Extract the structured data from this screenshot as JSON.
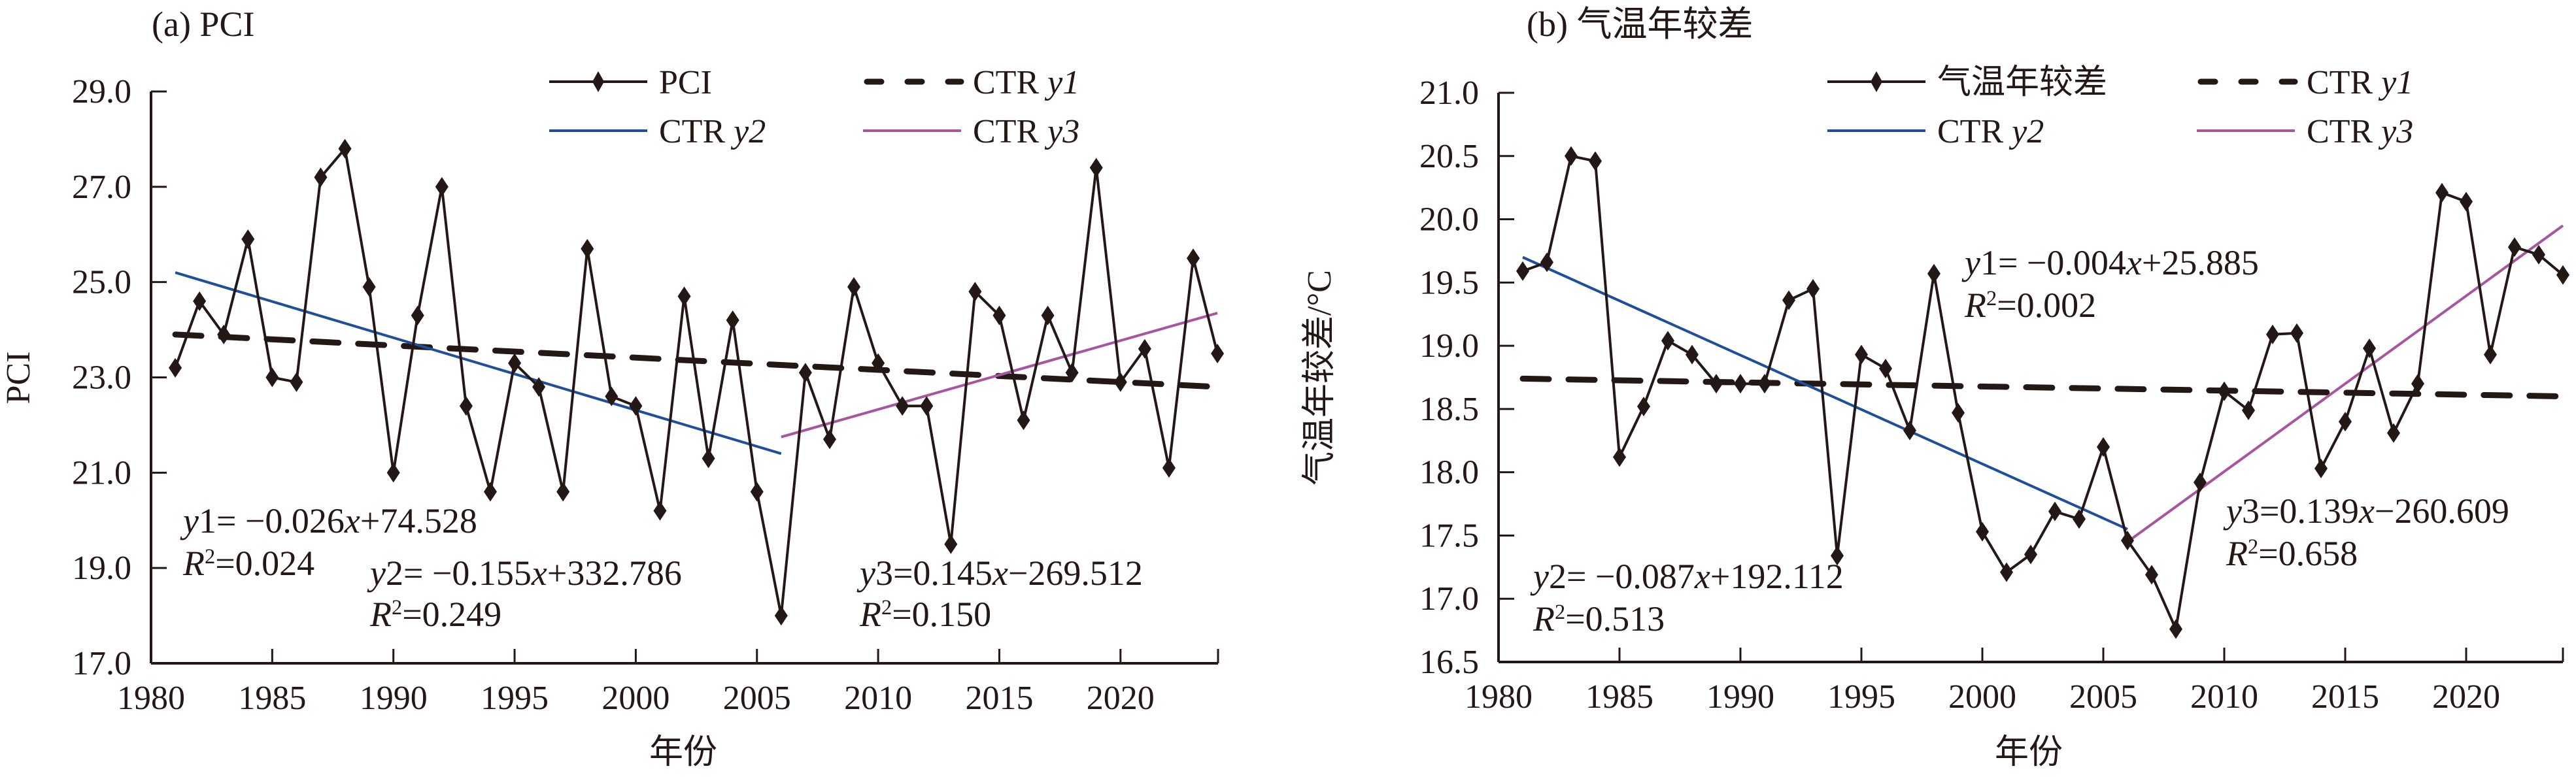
{
  "chart_data": [
    {
      "type": "line",
      "title": "(a) PCI",
      "xlabel": "年份",
      "ylabel": "PCI",
      "xlim": [
        1980,
        2024
      ],
      "ylim": [
        17.0,
        29.0
      ],
      "xticks": [
        1980,
        1985,
        1990,
        1995,
        2000,
        2005,
        2010,
        2015,
        2020
      ],
      "yticks": [
        "17.0",
        "19.0",
        "21.0",
        "23.0",
        "25.0",
        "27.0",
        "29.0"
      ],
      "ytick_values": [
        17,
        19,
        21,
        23,
        25,
        27,
        29
      ],
      "grid": false,
      "legend_position": "top-right",
      "legend": [
        {
          "label": "PCI",
          "label_italic": "",
          "style": "line-diamond",
          "color": "#231815"
        },
        {
          "label": "CTR ",
          "label_italic": "y1",
          "style": "dashed",
          "color": "#231815"
        },
        {
          "label": "CTR ",
          "label_italic": "y2",
          "style": "solid",
          "color": "#1f4e9e"
        },
        {
          "label": "CTR ",
          "label_italic": "y3",
          "style": "solid",
          "color": "#a855a0"
        }
      ],
      "x": [
        1981,
        1982,
        1983,
        1984,
        1985,
        1986,
        1987,
        1988,
        1989,
        1990,
        1991,
        1992,
        1993,
        1994,
        1995,
        1996,
        1997,
        1998,
        1999,
        2000,
        2001,
        2002,
        2003,
        2004,
        2005,
        2006,
        2007,
        2008,
        2009,
        2010,
        2011,
        2012,
        2013,
        2014,
        2015,
        2016,
        2017,
        2018,
        2019,
        2020,
        2021,
        2022,
        2023,
        2024
      ],
      "series": [
        {
          "name": "PCI",
          "values": [
            23.2,
            24.6,
            23.9,
            25.9,
            23.0,
            22.9,
            27.2,
            27.8,
            24.9,
            21.0,
            24.3,
            27.0,
            22.4,
            20.6,
            23.3,
            22.8,
            20.6,
            25.7,
            22.6,
            22.4,
            20.2,
            24.7,
            21.3,
            24.2,
            20.6,
            18.0,
            23.1,
            21.7,
            24.9,
            23.3,
            22.4,
            22.4,
            19.5,
            24.8,
            24.3,
            22.1,
            24.3,
            23.1,
            27.4,
            22.9,
            23.6,
            21.1,
            25.5,
            23.5
          ]
        }
      ],
      "trendlines": [
        {
          "name": "CTR y1",
          "x_range": [
            1981,
            2024
          ],
          "slope": -0.026,
          "intercept": 74.528,
          "r2": 0.024,
          "y_start": 23.9,
          "y_end": 22.8
        },
        {
          "name": "CTR y2",
          "x_range": [
            1981,
            2006
          ],
          "slope": -0.155,
          "intercept": 332.786,
          "r2": 0.249,
          "y_start": 25.2,
          "y_end": 21.4
        },
        {
          "name": "CTR y3",
          "x_range": [
            2006,
            2024
          ],
          "slope": 0.145,
          "intercept": -269.512,
          "r2": 0.15,
          "y_start": 21.75,
          "y_end": 24.35
        }
      ],
      "annotations": [
        {
          "eq_var": "y",
          "eq_idx": "1",
          "eq_rest": "= −0.026",
          "eq_x": "x",
          "eq_tail": "+74.528",
          "r2": "=0.024"
        },
        {
          "eq_var": "y",
          "eq_idx": "2",
          "eq_rest": "= −0.155",
          "eq_x": "x",
          "eq_tail": "+332.786",
          "r2": "=0.249"
        },
        {
          "eq_var": "y",
          "eq_idx": "3",
          "eq_rest": "=0.145",
          "eq_x": "x",
          "eq_tail": "−269.512",
          "r2": "=0.150"
        }
      ]
    },
    {
      "type": "line",
      "title": "(b) 气温年较差",
      "xlabel": "年份",
      "ylabel": "气温年较差/°C",
      "xlim": [
        1980,
        2024
      ],
      "ylim": [
        16.5,
        21.0
      ],
      "xticks": [
        1980,
        1985,
        1990,
        1995,
        2000,
        2005,
        2010,
        2015,
        2020
      ],
      "yticks": [
        "16.5",
        "17.0",
        "17.5",
        "18.0",
        "18.5",
        "19.0",
        "19.5",
        "20.0",
        "20.5",
        "21.0"
      ],
      "ytick_values": [
        16.5,
        17.0,
        17.5,
        18.0,
        18.5,
        19.0,
        19.5,
        20.0,
        20.5,
        21.0
      ],
      "grid": false,
      "legend_position": "top-right",
      "legend": [
        {
          "label": "气温年较差",
          "label_italic": "",
          "style": "line-diamond",
          "color": "#231815"
        },
        {
          "label": "CTR ",
          "label_italic": "y1",
          "style": "dashed",
          "color": "#231815"
        },
        {
          "label": "CTR ",
          "label_italic": "y2",
          "style": "solid",
          "color": "#1f4e9e"
        },
        {
          "label": "CTR ",
          "label_italic": "y3",
          "style": "solid",
          "color": "#a855a0"
        }
      ],
      "x": [
        1981,
        1982,
        1983,
        1984,
        1985,
        1986,
        1987,
        1988,
        1989,
        1990,
        1991,
        1992,
        1993,
        1994,
        1995,
        1996,
        1997,
        1998,
        1999,
        2000,
        2001,
        2002,
        2003,
        2004,
        2005,
        2006,
        2007,
        2008,
        2009,
        2010,
        2011,
        2012,
        2013,
        2014,
        2015,
        2016,
        2017,
        2018,
        2019,
        2020,
        2021,
        2022,
        2023,
        2024
      ],
      "series": [
        {
          "name": "气温年较差",
          "values": [
            19.59,
            19.66,
            20.5,
            20.46,
            18.12,
            18.52,
            19.04,
            18.93,
            18.7,
            18.7,
            18.7,
            19.36,
            19.45,
            17.34,
            18.93,
            18.82,
            18.33,
            19.57,
            18.47,
            17.53,
            17.21,
            17.35,
            17.69,
            17.63,
            18.2,
            17.46,
            17.19,
            16.76,
            17.92,
            18.64,
            18.49,
            19.09,
            19.1,
            18.03,
            18.4,
            18.98,
            18.31,
            18.7,
            20.21,
            20.14,
            18.93,
            19.78,
            19.72,
            19.56
          ]
        }
      ],
      "trendlines": [
        {
          "name": "CTR y1",
          "x_range": [
            1981,
            2024
          ],
          "slope": -0.004,
          "intercept": 25.885,
          "r2": 0.002,
          "y_start": 18.74,
          "y_end": 18.6
        },
        {
          "name": "CTR y2",
          "x_range": [
            1981,
            2006
          ],
          "slope": -0.087,
          "intercept": 192.112,
          "r2": 0.513,
          "y_start": 19.7,
          "y_end": 17.55
        },
        {
          "name": "CTR y3",
          "x_range": [
            2006,
            2024
          ],
          "slope": 0.139,
          "intercept": -260.609,
          "r2": 0.658,
          "y_start": 17.45,
          "y_end": 19.95
        }
      ],
      "annotations": [
        {
          "eq_var": "y",
          "eq_idx": "1",
          "eq_rest": "= −0.004",
          "eq_x": "x",
          "eq_tail": "+25.885",
          "r2": "=0.002"
        },
        {
          "eq_var": "y",
          "eq_idx": "2",
          "eq_rest": "= −0.087",
          "eq_x": "x",
          "eq_tail": "+192.112",
          "r2": "=0.513"
        },
        {
          "eq_var": "y",
          "eq_idx": "3",
          "eq_rest": "=0.139",
          "eq_x": "x",
          "eq_tail": "−260.609",
          "r2": "=0.658"
        }
      ]
    }
  ]
}
